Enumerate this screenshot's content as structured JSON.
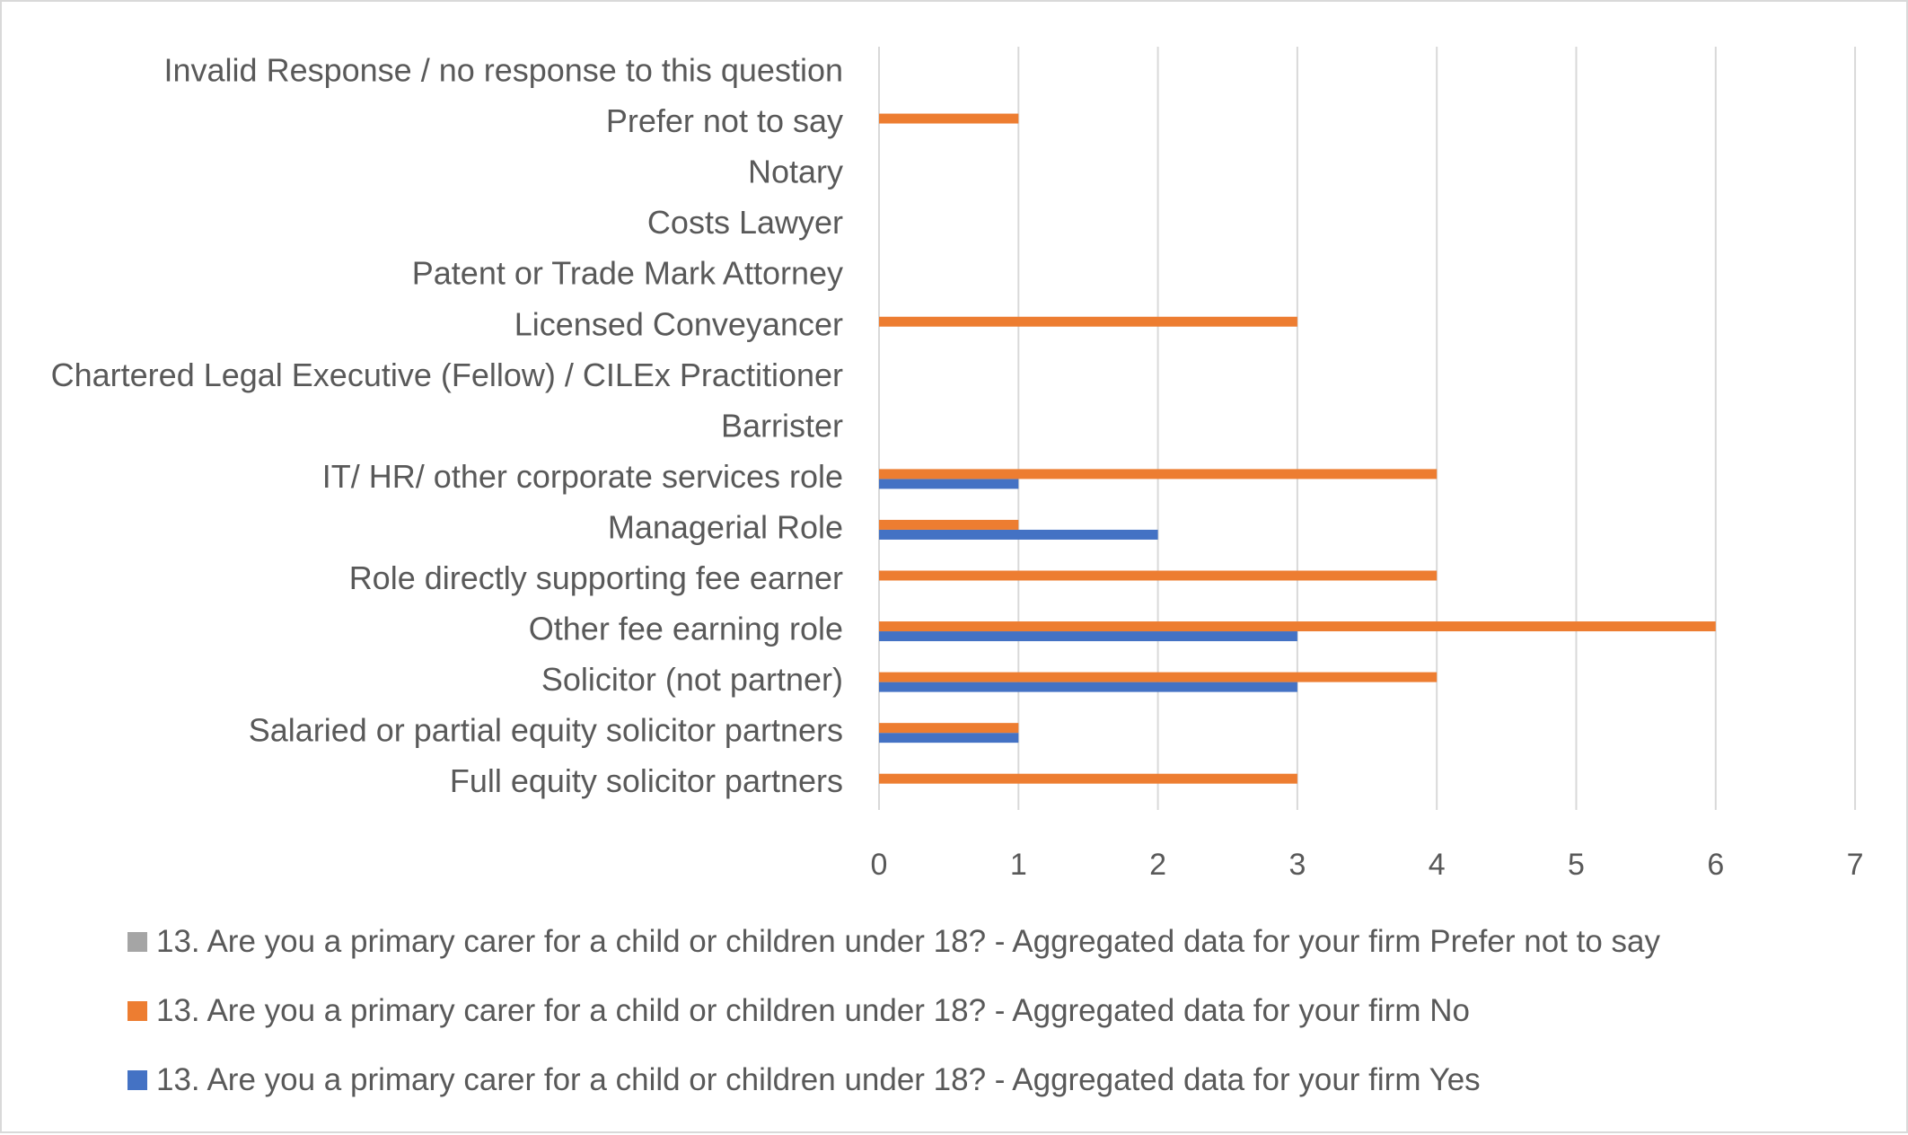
{
  "chart_data": {
    "type": "bar",
    "orientation": "horizontal",
    "categories": [
      "Invalid Response / no response to this question",
      "Prefer not to say",
      "Notary",
      "Costs Lawyer",
      "Patent or Trade Mark Attorney",
      "Licensed Conveyancer",
      "Chartered Legal Executive (Fellow) / CILEx Practitioner",
      "Barrister",
      "IT/ HR/ other corporate services role",
      "Managerial Role",
      "Role directly supporting fee earner",
      "Other fee earning role",
      "Solicitor (not partner)",
      "Salaried or partial equity solicitor partners",
      "Full equity solicitor partners"
    ],
    "series": [
      {
        "name": "13. Are you a primary carer for a child or children under 18? - Aggregated data for your firm Yes",
        "color": "#4472c4",
        "values": [
          0,
          0,
          0,
          0,
          0,
          0,
          0,
          0,
          1,
          2,
          0,
          3,
          3,
          1,
          0
        ]
      },
      {
        "name": "13. Are you a primary carer for a child or children under 18? - Aggregated data for your firm No",
        "color": "#ed7d31",
        "values": [
          0,
          1,
          0,
          0,
          0,
          3,
          0,
          0,
          4,
          1,
          4,
          6,
          4,
          1,
          3
        ]
      },
      {
        "name": "13. Are you a primary carer for a child or children under 18? - Aggregated data for your firm Prefer not to say",
        "color": "#a5a5a5",
        "values": [
          0,
          0,
          0,
          0,
          0,
          0,
          0,
          0,
          0,
          0,
          0,
          0,
          0,
          0,
          0
        ]
      }
    ],
    "xlim": [
      0,
      7
    ],
    "xticks": [
      "0",
      "1",
      "2",
      "3",
      "4",
      "5",
      "6",
      "7"
    ],
    "grid": true,
    "legend_position": "bottom",
    "legend_order": [
      "13. Are you a primary carer for a child or children under 18? - Aggregated data for your firm Prefer not to say",
      "13. Are you a primary carer for a child or children under 18? - Aggregated data for your firm No",
      "13. Are you a primary carer for a child or children under 18? - Aggregated data for your firm Yes"
    ]
  }
}
